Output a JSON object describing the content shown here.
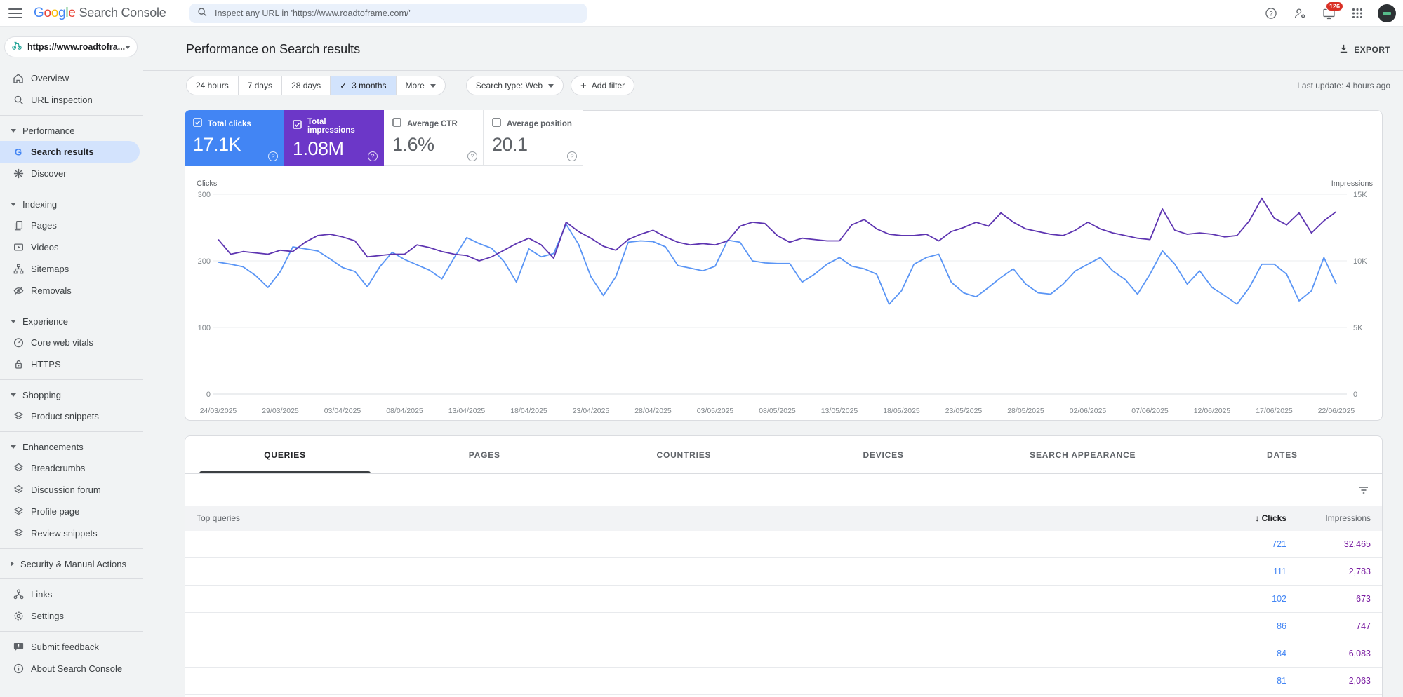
{
  "topbar": {
    "logo_google": "Google",
    "logo_google_letter_colors": [
      "#4285f4",
      "#ea4335",
      "#fbbc05",
      "#4285f4",
      "#34a853",
      "#ea4335"
    ],
    "logo_product": "Search Console",
    "search_placeholder": "Inspect any URL in 'https://www.roadtoframe.com/'",
    "notification_count": "126",
    "icons": [
      "help-icon",
      "manage-users-icon",
      "notifications-monitor-icon",
      "apps-grid-icon",
      "avatar"
    ]
  },
  "property": {
    "label": "https://www.roadtofra..."
  },
  "sidebar": {
    "sections": [
      {
        "items": [
          {
            "icon": "home-icon",
            "label": "Overview"
          },
          {
            "icon": "search-icon",
            "label": "URL inspection"
          }
        ]
      },
      {
        "divider": true,
        "header": "Performance",
        "expanded": true,
        "items": [
          {
            "icon": "google-g-icon",
            "label": "Search results",
            "active": true
          },
          {
            "icon": "discover-icon",
            "label": "Discover"
          }
        ]
      },
      {
        "divider": true,
        "header": "Indexing",
        "expanded": true,
        "items": [
          {
            "icon": "pages-icon",
            "label": "Pages"
          },
          {
            "icon": "videos-icon",
            "label": "Videos"
          },
          {
            "icon": "sitemaps-icon",
            "label": "Sitemaps"
          },
          {
            "icon": "removals-icon",
            "label": "Removals"
          }
        ]
      },
      {
        "divider": true,
        "header": "Experience",
        "expanded": true,
        "items": [
          {
            "icon": "core-web-vitals-icon",
            "label": "Core web vitals"
          },
          {
            "icon": "https-lock-icon",
            "label": "HTTPS"
          }
        ]
      },
      {
        "divider": true,
        "header": "Shopping",
        "expanded": true,
        "items": [
          {
            "icon": "snippet-icon",
            "label": "Product snippets"
          }
        ]
      },
      {
        "divider": true,
        "header": "Enhancements",
        "expanded": true,
        "items": [
          {
            "icon": "snippet-icon",
            "label": "Breadcrumbs"
          },
          {
            "icon": "snippet-icon",
            "label": "Discussion forum"
          },
          {
            "icon": "snippet-icon",
            "label": "Profile page"
          },
          {
            "icon": "snippet-icon",
            "label": "Review snippets"
          }
        ]
      },
      {
        "divider": true,
        "header": "Security & Manual Actions",
        "expanded": false,
        "items": []
      },
      {
        "divider": true,
        "items": [
          {
            "icon": "links-icon",
            "label": "Links"
          },
          {
            "icon": "settings-gear-icon",
            "label": "Settings"
          }
        ]
      },
      {
        "divider": true,
        "items": [
          {
            "icon": "feedback-icon",
            "label": "Submit feedback"
          },
          {
            "icon": "info-icon",
            "label": "About Search Console"
          }
        ]
      }
    ]
  },
  "header": {
    "title": "Performance on Search results",
    "export_label": "EXPORT",
    "last_update": "Last update: 4 hours ago"
  },
  "filters": {
    "date_chips": [
      "24 hours",
      "7 days",
      "28 days",
      "3 months"
    ],
    "selected_chip": "3 months",
    "more_label": "More",
    "search_type": "Search type: Web",
    "add_filter": "Add filter"
  },
  "metrics": [
    {
      "label": "Total clicks",
      "value": "17.1K",
      "selected": true,
      "color": "#4285f4"
    },
    {
      "label": "Total impressions",
      "value": "1.08M",
      "selected": true,
      "color": "#6c37c8"
    },
    {
      "label": "Average CTR",
      "value": "1.6%",
      "selected": false,
      "color": ""
    },
    {
      "label": "Average position",
      "value": "20.1",
      "selected": false,
      "color": ""
    }
  ],
  "chart_data": {
    "type": "line",
    "title": "Performance on Search results",
    "x_start": "24/03/2025",
    "x_end": "22/06/2025",
    "x_tick_labels": [
      "24/03/2025",
      "29/03/2025",
      "03/04/2025",
      "08/04/2025",
      "13/04/2025",
      "18/04/2025",
      "23/04/2025",
      "28/04/2025",
      "03/05/2025",
      "08/05/2025",
      "13/05/2025",
      "18/05/2025",
      "23/05/2025",
      "28/05/2025",
      "02/06/2025",
      "07/06/2025",
      "12/06/2025",
      "17/06/2025",
      "22/06/2025"
    ],
    "grid": true,
    "legend_position": "none",
    "left_axis": {
      "label": "Clicks",
      "ticks": [
        "300",
        "200",
        "100",
        "0"
      ],
      "max": 300
    },
    "right_axis": {
      "label": "Impressions",
      "ticks": [
        "15K",
        "10K",
        "5K",
        "0"
      ],
      "max": 15
    },
    "series": [
      {
        "name": "Clicks",
        "axis": "left",
        "color": "#5a95f5",
        "values": [
          198,
          195,
          191,
          178,
          160,
          184,
          221,
          218,
          215,
          203,
          190,
          184,
          161,
          191,
          213,
          202,
          194,
          186,
          173,
          205,
          235,
          226,
          219,
          199,
          168,
          218,
          206,
          211,
          255,
          225,
          176,
          148,
          176,
          228,
          230,
          229,
          221,
          193,
          189,
          185,
          192,
          231,
          228,
          200,
          197,
          196,
          196,
          168,
          180,
          195,
          205,
          192,
          188,
          180,
          135,
          155,
          195,
          205,
          210,
          168,
          152,
          146,
          160,
          175,
          188,
          165,
          152,
          150,
          165,
          185,
          195,
          205,
          185,
          172,
          150,
          180,
          215,
          195,
          165,
          185,
          160,
          148,
          135,
          160,
          195,
          195,
          180,
          140,
          155,
          205,
          165
        ]
      },
      {
        "name": "Impressions",
        "axis": "right",
        "unit": "K",
        "color": "#5e35b1",
        "values": [
          11.6,
          10.5,
          10.7,
          10.6,
          10.5,
          10.8,
          10.7,
          11.4,
          11.9,
          12.0,
          11.8,
          11.5,
          10.3,
          10.4,
          10.5,
          10.5,
          11.2,
          11.0,
          10.7,
          10.5,
          10.4,
          10.0,
          10.3,
          10.8,
          11.3,
          11.7,
          11.2,
          10.2,
          12.9,
          12.2,
          11.7,
          11.1,
          10.8,
          11.6,
          12.0,
          12.3,
          11.8,
          11.4,
          11.2,
          11.3,
          11.2,
          11.5,
          12.6,
          12.9,
          12.8,
          11.9,
          11.4,
          11.7,
          11.6,
          11.5,
          11.5,
          12.7,
          13.1,
          12.4,
          12.0,
          11.9,
          11.9,
          12.0,
          11.5,
          12.2,
          12.5,
          12.9,
          12.6,
          13.6,
          12.9,
          12.4,
          12.2,
          12.0,
          11.9,
          12.3,
          12.9,
          12.4,
          12.1,
          11.9,
          11.7,
          11.6,
          13.9,
          12.3,
          12.0,
          12.1,
          12.0,
          11.8,
          11.9,
          13.0,
          14.7,
          13.2,
          12.7,
          13.6,
          12.1,
          13.0,
          13.7
        ]
      }
    ]
  },
  "table": {
    "tabs": [
      "QUERIES",
      "PAGES",
      "COUNTRIES",
      "DEVICES",
      "SEARCH APPEARANCE",
      "DATES"
    ],
    "active_tab": "QUERIES",
    "first_col_header": "Top queries",
    "clicks_header": "Clicks",
    "impressions_header": "Impressions",
    "rows": [
      {
        "query": "",
        "clicks": "721",
        "impressions": "32,465"
      },
      {
        "query": "",
        "clicks": "111",
        "impressions": "2,783"
      },
      {
        "query": "",
        "clicks": "102",
        "impressions": "673"
      },
      {
        "query": "",
        "clicks": "86",
        "impressions": "747"
      },
      {
        "query": "",
        "clicks": "84",
        "impressions": "6,083"
      },
      {
        "query": "",
        "clicks": "81",
        "impressions": "2,063"
      }
    ]
  }
}
